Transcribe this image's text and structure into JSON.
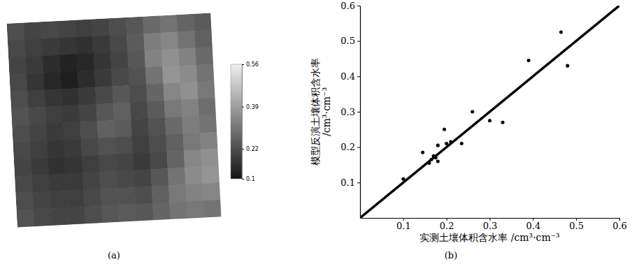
{
  "chart_data": [
    {
      "type": "heatmap",
      "title": "(a)",
      "tick_labels": false,
      "cells": [
        [
          0.22,
          0.2,
          0.21,
          0.2,
          0.19,
          0.2,
          0.22,
          0.24,
          0.28,
          0.3,
          0.27,
          0.25
        ],
        [
          0.21,
          0.19,
          0.18,
          0.17,
          0.16,
          0.18,
          0.21,
          0.25,
          0.32,
          0.34,
          0.3,
          0.26
        ],
        [
          0.2,
          0.18,
          0.15,
          0.13,
          0.14,
          0.17,
          0.2,
          0.24,
          0.33,
          0.36,
          0.33,
          0.28
        ],
        [
          0.21,
          0.17,
          0.14,
          0.12,
          0.15,
          0.18,
          0.21,
          0.23,
          0.3,
          0.37,
          0.35,
          0.3
        ],
        [
          0.22,
          0.19,
          0.17,
          0.16,
          0.18,
          0.21,
          0.24,
          0.22,
          0.27,
          0.34,
          0.36,
          0.31
        ],
        [
          0.23,
          0.21,
          0.19,
          0.18,
          0.2,
          0.24,
          0.26,
          0.21,
          0.25,
          0.31,
          0.33,
          0.29
        ],
        [
          0.22,
          0.2,
          0.18,
          0.19,
          0.22,
          0.26,
          0.25,
          0.2,
          0.23,
          0.28,
          0.32,
          0.3
        ],
        [
          0.21,
          0.19,
          0.17,
          0.18,
          0.21,
          0.23,
          0.22,
          0.19,
          0.22,
          0.26,
          0.31,
          0.33
        ],
        [
          0.2,
          0.18,
          0.16,
          0.17,
          0.19,
          0.21,
          0.2,
          0.18,
          0.21,
          0.27,
          0.34,
          0.36
        ],
        [
          0.21,
          0.19,
          0.18,
          0.18,
          0.2,
          0.22,
          0.21,
          0.2,
          0.24,
          0.3,
          0.35,
          0.37
        ],
        [
          0.22,
          0.2,
          0.19,
          0.19,
          0.21,
          0.23,
          0.23,
          0.22,
          0.26,
          0.31,
          0.33,
          0.34
        ],
        [
          0.23,
          0.21,
          0.2,
          0.2,
          0.22,
          0.24,
          0.25,
          0.24,
          0.27,
          0.3,
          0.31,
          0.3
        ]
      ],
      "color_range": [
        0.1,
        0.56
      ],
      "color_ticks": [
        0.1,
        0.22,
        0.39,
        0.56
      ]
    },
    {
      "type": "scatter",
      "title": "(b)",
      "xlabel": "实测土壤体积含水率 /cm³·cm⁻³",
      "ylabel": [
        "模型反演土壤体积含水率",
        "/cm³·cm⁻³"
      ],
      "x": [
        0.1,
        0.145,
        0.16,
        0.165,
        0.17,
        0.175,
        0.18,
        0.18,
        0.195,
        0.2,
        0.21,
        0.235,
        0.26,
        0.3,
        0.33,
        0.39,
        0.465,
        0.48
      ],
      "values": [
        0.11,
        0.185,
        0.155,
        0.165,
        0.175,
        0.17,
        0.205,
        0.16,
        0.25,
        0.21,
        0.215,
        0.21,
        0.3,
        0.275,
        0.27,
        0.445,
        0.525,
        0.43
      ],
      "color": "#000000",
      "marker": "circle",
      "xlim": [
        0,
        0.6
      ],
      "ylim": [
        0,
        0.6
      ],
      "xticks": [
        0.1,
        0.2,
        0.3,
        0.4,
        0.5,
        0.6
      ],
      "yticks": [
        0.1,
        0.2,
        0.3,
        0.4,
        0.5,
        0.6
      ]
    }
  ]
}
